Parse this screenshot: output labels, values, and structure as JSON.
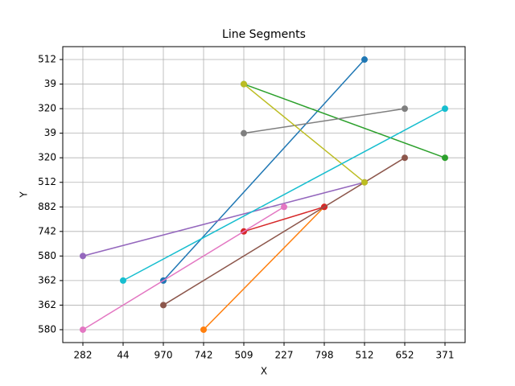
{
  "chart_data": {
    "type": "line",
    "title": "Line Segments",
    "x_label": "X",
    "y_label": "Y",
    "xlim": [
      -0.5,
      9.5
    ],
    "xticks": [
      {
        "value": 0,
        "label": "282"
      },
      {
        "value": 1,
        "label": "44"
      },
      {
        "value": 2,
        "label": "970"
      },
      {
        "value": 3,
        "label": "742"
      },
      {
        "value": 4,
        "label": "509"
      },
      {
        "value": 5,
        "label": "227"
      },
      {
        "value": 6,
        "label": "798"
      },
      {
        "value": 7,
        "label": "512"
      },
      {
        "value": 8,
        "label": "652"
      },
      {
        "value": 9,
        "label": "371"
      }
    ],
    "ylim": [
      -0.525,
      11.525
    ],
    "yticks": [
      {
        "value": 0,
        "label": "580"
      },
      {
        "value": 1,
        "label": "362"
      },
      {
        "value": 2,
        "label": "362"
      },
      {
        "value": 3,
        "label": "580"
      },
      {
        "value": 4,
        "label": "742"
      },
      {
        "value": 5,
        "label": "882"
      },
      {
        "value": 6,
        "label": "512"
      },
      {
        "value": 7,
        "label": "320"
      },
      {
        "value": 8,
        "label": "39"
      },
      {
        "value": 9,
        "label": "320"
      },
      {
        "value": 10,
        "label": "39"
      },
      {
        "value": 11,
        "label": "512"
      }
    ],
    "grid": true,
    "series": [
      {
        "color": "#1f77b4",
        "x": [
          2,
          7
        ],
        "values": [
          2,
          11
        ]
      },
      {
        "color": "#ff7f0e",
        "x": [
          3,
          6
        ],
        "values": [
          0,
          5
        ]
      },
      {
        "color": "#2ca02c",
        "x": [
          4,
          9
        ],
        "values": [
          10,
          7
        ]
      },
      {
        "color": "#d62728",
        "x": [
          4,
          6
        ],
        "values": [
          4,
          5
        ]
      },
      {
        "color": "#9467bd",
        "x": [
          0,
          7
        ],
        "values": [
          3,
          6
        ]
      },
      {
        "color": "#8c564b",
        "x": [
          2,
          8
        ],
        "values": [
          1,
          7
        ]
      },
      {
        "color": "#e377c2",
        "x": [
          0,
          5
        ],
        "values": [
          0,
          5
        ]
      },
      {
        "color": "#7f7f7f",
        "x": [
          4,
          8
        ],
        "values": [
          8,
          9
        ]
      },
      {
        "color": "#bcbd22",
        "x": [
          4,
          7
        ],
        "values": [
          10,
          6
        ]
      },
      {
        "color": "#17becf",
        "x": [
          1,
          9
        ],
        "values": [
          2,
          9
        ]
      }
    ]
  }
}
